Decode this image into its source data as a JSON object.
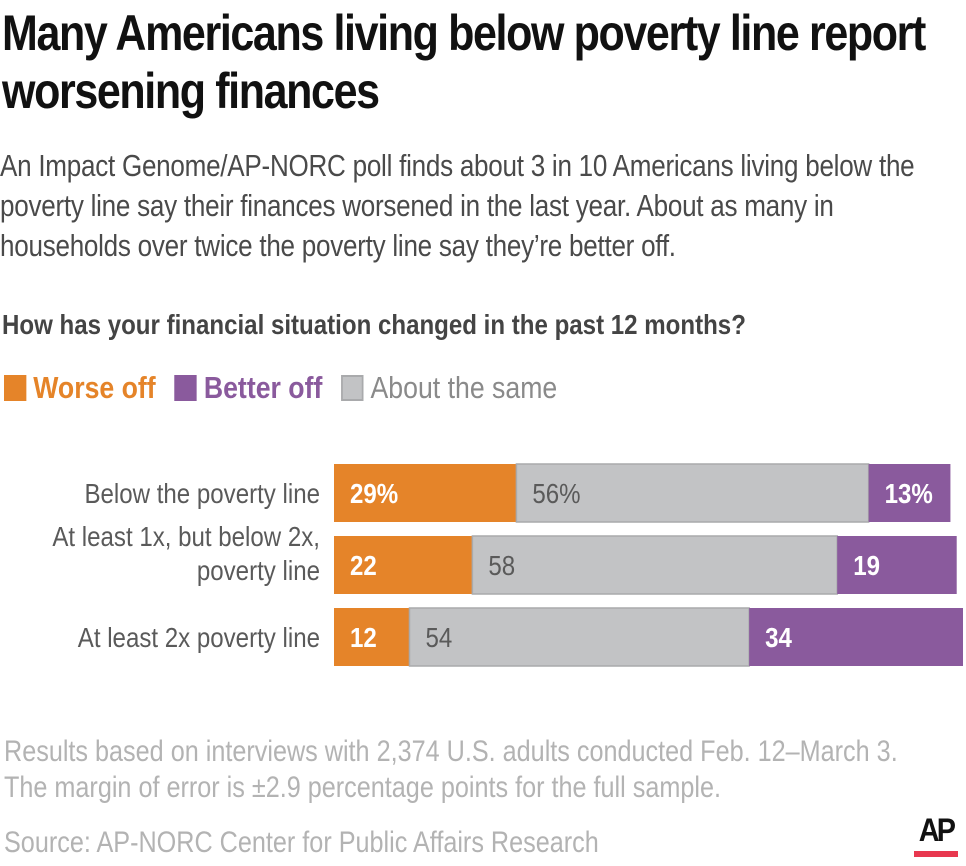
{
  "header": {
    "title": "Many Americans living below poverty line report worsening finances",
    "subtitle": "An Impact Genome/AP-NORC poll finds about 3 in 10 Americans living below the poverty line say their finances worsened in the last year. About as many in households over twice the poverty line say they’re better off.",
    "question": "How has your financial situation changed in the past 12 months?"
  },
  "colors": {
    "worse": "#e58429",
    "better": "#8a5a9d",
    "same": "#c2c3c5",
    "same_border": "#a9aaac",
    "ap_red": "#e8384f"
  },
  "legend": [
    {
      "key": "worse",
      "label": "Worse off"
    },
    {
      "key": "better",
      "label": "Better off"
    },
    {
      "key": "same",
      "label": "About the same"
    }
  ],
  "chart_data": {
    "type": "bar",
    "orientation": "horizontal",
    "stacked": true,
    "title": "How has your financial situation changed in the past 12 months?",
    "xlabel": "",
    "ylabel": "",
    "xlim": [
      0,
      100
    ],
    "grid": false,
    "legend_position": "top-left",
    "categories": [
      [
        "Below the poverty line"
      ],
      [
        "At least 1x, but below 2x,",
        "poverty line"
      ],
      [
        "At least 2x poverty line"
      ]
    ],
    "series": [
      {
        "name": "Worse off",
        "key": "worse",
        "values": [
          29,
          22,
          12
        ],
        "labels": [
          "29%",
          "22",
          "12"
        ]
      },
      {
        "name": "About the same",
        "key": "same",
        "values": [
          56,
          58,
          54
        ],
        "labels": [
          "56%",
          "58",
          "54"
        ]
      },
      {
        "name": "Better off",
        "key": "better",
        "values": [
          13,
          19,
          34
        ],
        "labels": [
          "13%",
          "19",
          "34"
        ]
      }
    ]
  },
  "footer": {
    "note": "Results based on interviews with 2,374 U.S. adults conducted Feb. 12–March 3. The margin of error is ±2.9 percentage points for the full sample.",
    "source": "Source: AP-NORC Center for Public Affairs Research",
    "logo_text": "AP"
  }
}
